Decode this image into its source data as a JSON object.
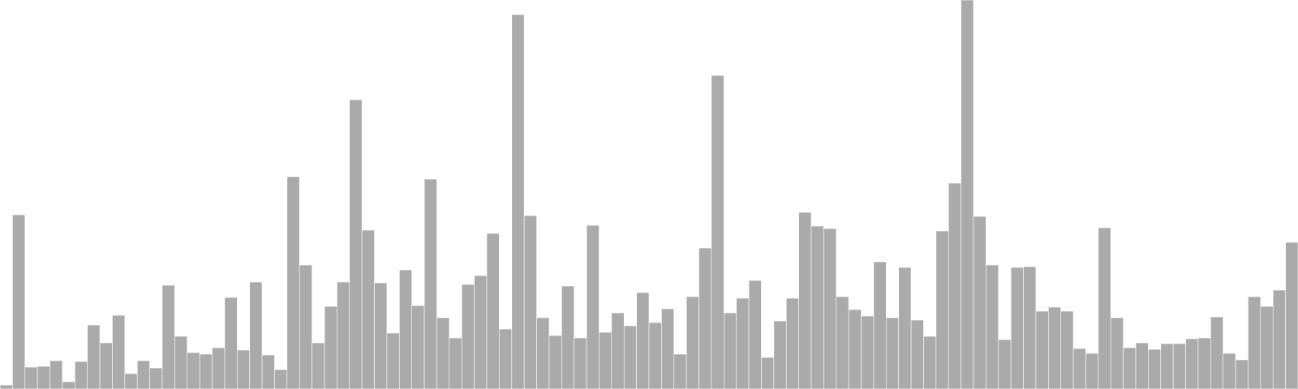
{
  "chart_data": {
    "type": "bar",
    "ylim": [
      0,
      480
    ],
    "grid": false,
    "colors": {
      "bar": "#aaaaaa",
      "background": "#ffffff"
    },
    "values": [
      5,
      215,
      27,
      28,
      35,
      9,
      34,
      79,
      57,
      91,
      19,
      35,
      26,
      128,
      65,
      45,
      43,
      51,
      113,
      48,
      132,
      42,
      24,
      262,
      153,
      57,
      102,
      132,
      357,
      196,
      131,
      69,
      147,
      103,
      259,
      88,
      63,
      129,
      140,
      192,
      74,
      462,
      214,
      88,
      66,
      127,
      63,
      202,
      70,
      94,
      78,
      119,
      82,
      99,
      43,
      114,
      174,
      387,
      94,
      112,
      134,
      39,
      84,
      112,
      218,
      201,
      198,
      114,
      98,
      90,
      157,
      88,
      150,
      85,
      65,
      195,
      254,
      480,
      213,
      153,
      61,
      150,
      151,
      96,
      101,
      96,
      50,
      44,
      199,
      88,
      51,
      57,
      49,
      56,
      56,
      62,
      63,
      89,
      44,
      36,
      114,
      102,
      122,
      181
    ]
  }
}
